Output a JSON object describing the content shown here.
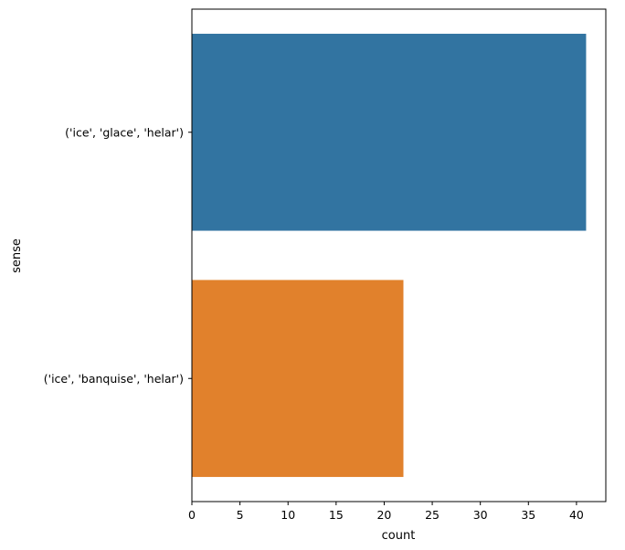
{
  "chart_data": {
    "type": "bar",
    "orientation": "horizontal",
    "categories": [
      "('ice', 'glace', 'helar')",
      "('ice', 'banquise', 'helar')"
    ],
    "values": [
      41,
      22
    ],
    "colors": [
      "#3274a1",
      "#e1812c"
    ],
    "title": "",
    "xlabel": "count",
    "ylabel": "sense",
    "xlim": [
      0,
      43.05
    ],
    "xticks": [
      0,
      5,
      10,
      15,
      20,
      25,
      30,
      35,
      40
    ],
    "grid": false,
    "legend": "none"
  }
}
